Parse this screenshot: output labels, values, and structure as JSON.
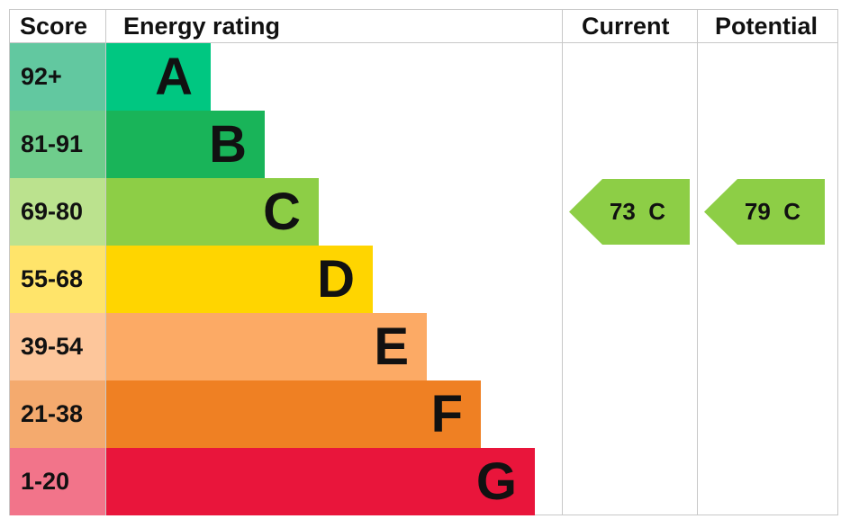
{
  "chart_data": {
    "type": "bar",
    "headers": {
      "score": "Score",
      "rating": "Energy rating",
      "current": "Current",
      "potential": "Potential"
    },
    "bands": [
      {
        "score": "92+",
        "letter": "A",
        "color": "#00c781",
        "light": "#62c8a0"
      },
      {
        "score": "81-91",
        "letter": "B",
        "color": "#19b459",
        "light": "#6fcd8c"
      },
      {
        "score": "69-80",
        "letter": "C",
        "color": "#8dce46",
        "light": "#bbe28e"
      },
      {
        "score": "55-68",
        "letter": "D",
        "color": "#ffd500",
        "light": "#ffe46a"
      },
      {
        "score": "39-54",
        "letter": "E",
        "color": "#fcaa65",
        "light": "#fdc69b"
      },
      {
        "score": "21-38",
        "letter": "F",
        "color": "#ef8023",
        "light": "#f4aa6e"
      },
      {
        "score": "1-20",
        "letter": "G",
        "color": "#e9153b",
        "light": "#f2748a"
      }
    ],
    "current": {
      "value": 73,
      "band": "C",
      "label": "73  C",
      "color": "#8dce46"
    },
    "potential": {
      "value": 79,
      "band": "C",
      "label": "79  C",
      "color": "#8dce46"
    }
  }
}
